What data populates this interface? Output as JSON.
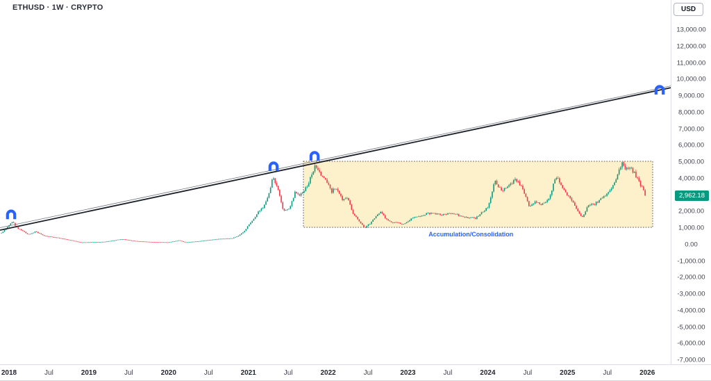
{
  "header": {
    "symbol_title": "ETHUSD · 1W · CRYPTO",
    "currency_button": "USD"
  },
  "price_scale": {
    "ticks": [
      {
        "label": "13,000.00",
        "value": 13000
      },
      {
        "label": "12,000.00",
        "value": 12000
      },
      {
        "label": "11,000.00",
        "value": 11000
      },
      {
        "label": "10,000.00",
        "value": 10000
      },
      {
        "label": "9,000.00",
        "value": 9000
      },
      {
        "label": "8,000.00",
        "value": 8000
      },
      {
        "label": "7,000.00",
        "value": 7000
      },
      {
        "label": "6,000.00",
        "value": 6000
      },
      {
        "label": "5,000.00",
        "value": 5000
      },
      {
        "label": "4,000.00",
        "value": 4000
      },
      {
        "label": "2,000.00",
        "value": 2000
      },
      {
        "label": "1,000.00",
        "value": 1000
      },
      {
        "label": "0.00",
        "value": 0
      },
      {
        "label": "-1,000.00",
        "value": -1000
      },
      {
        "label": "-2,000.00",
        "value": -2000
      },
      {
        "label": "-3,000.00",
        "value": -3000
      },
      {
        "label": "-4,000.00",
        "value": -4000
      },
      {
        "label": "-5,000.00",
        "value": -5000
      },
      {
        "label": "-6,000.00",
        "value": -6000
      },
      {
        "label": "-7,000.00",
        "value": -7000
      }
    ],
    "last_price_badge": {
      "label": "2,962.18",
      "value": 2962.18,
      "bg": "#089981"
    }
  },
  "time_scale": {
    "ticks": [
      {
        "label": "2018",
        "t": 0.0,
        "major": true
      },
      {
        "label": "Jul",
        "t": 0.5,
        "major": false
      },
      {
        "label": "2019",
        "t": 1.0,
        "major": true
      },
      {
        "label": "Jul",
        "t": 1.5,
        "major": false
      },
      {
        "label": "2020",
        "t": 2.0,
        "major": true
      },
      {
        "label": "Jul",
        "t": 2.5,
        "major": false
      },
      {
        "label": "2021",
        "t": 3.0,
        "major": true
      },
      {
        "label": "Jul",
        "t": 3.5,
        "major": false
      },
      {
        "label": "2022",
        "t": 4.0,
        "major": true
      },
      {
        "label": "Jul",
        "t": 4.5,
        "major": false
      },
      {
        "label": "2023",
        "t": 5.0,
        "major": true
      },
      {
        "label": "Jul",
        "t": 5.5,
        "major": false
      },
      {
        "label": "2024",
        "t": 6.0,
        "major": true
      },
      {
        "label": "Jul",
        "t": 6.5,
        "major": false
      },
      {
        "label": "2025",
        "t": 7.0,
        "major": true
      },
      {
        "label": "Jul",
        "t": 7.5,
        "major": false
      },
      {
        "label": "2026",
        "t": 8.0,
        "major": true
      }
    ]
  },
  "chart_data": {
    "type": "candlestick",
    "title": "ETHUSD weekly candles with ascending trendline and accumulation box",
    "symbol": "ETHUSD",
    "timeframe": "1W",
    "exchange": "CRYPTO",
    "currency": "USD",
    "axis_price_range": [
      -7000,
      13000
    ],
    "axis_time_range_years": [
      2018,
      2026
    ],
    "grid": false,
    "last_price": 2962.18,
    "candle_colors": {
      "up": "#089981",
      "down": "#F23645"
    },
    "weekly_close_anchors": [
      [
        -0.095,
        700
      ],
      [
        0.0,
        1150
      ],
      [
        0.04,
        1400
      ],
      [
        0.1,
        1000
      ],
      [
        0.16,
        850
      ],
      [
        0.24,
        600
      ],
      [
        0.33,
        780
      ],
      [
        0.45,
        520
      ],
      [
        0.6,
        420
      ],
      [
        0.75,
        280
      ],
      [
        0.9,
        130
      ],
      [
        1.0,
        140
      ],
      [
        1.2,
        165
      ],
      [
        1.42,
        330
      ],
      [
        1.58,
        210
      ],
      [
        1.8,
        150
      ],
      [
        2.0,
        135
      ],
      [
        2.13,
        250
      ],
      [
        2.21,
        130
      ],
      [
        2.4,
        215
      ],
      [
        2.6,
        330
      ],
      [
        2.72,
        360
      ],
      [
        2.8,
        380
      ],
      [
        2.88,
        550
      ],
      [
        2.94,
        750
      ],
      [
        3.0,
        1150
      ],
      [
        3.06,
        1500
      ],
      [
        3.12,
        1950
      ],
      [
        3.19,
        2300
      ],
      [
        3.25,
        2900
      ],
      [
        3.31,
        4200
      ],
      [
        3.37,
        3300
      ],
      [
        3.44,
        2050
      ],
      [
        3.52,
        2200
      ],
      [
        3.59,
        3250
      ],
      [
        3.64,
        2900
      ],
      [
        3.7,
        3250
      ],
      [
        3.76,
        3750
      ],
      [
        3.84,
        4850
      ],
      [
        3.89,
        4300
      ],
      [
        3.94,
        4100
      ],
      [
        3.98,
        3900
      ],
      [
        4.04,
        3200
      ],
      [
        4.1,
        3450
      ],
      [
        4.18,
        2700
      ],
      [
        4.24,
        2900
      ],
      [
        4.31,
        1900
      ],
      [
        4.41,
        1250
      ],
      [
        4.46,
        1000
      ],
      [
        4.54,
        1350
      ],
      [
        4.62,
        1850
      ],
      [
        4.66,
        2000
      ],
      [
        4.72,
        1600
      ],
      [
        4.78,
        1350
      ],
      [
        4.87,
        1300
      ],
      [
        4.95,
        1250
      ],
      [
        5.05,
        1600
      ],
      [
        5.15,
        1680
      ],
      [
        5.25,
        1900
      ],
      [
        5.35,
        1850
      ],
      [
        5.45,
        1800
      ],
      [
        5.55,
        1900
      ],
      [
        5.65,
        1750
      ],
      [
        5.75,
        1650
      ],
      [
        5.85,
        1600
      ],
      [
        5.92,
        1950
      ],
      [
        6.0,
        2250
      ],
      [
        6.09,
        3850
      ],
      [
        6.14,
        3500
      ],
      [
        6.18,
        3300
      ],
      [
        6.26,
        3600
      ],
      [
        6.35,
        3950
      ],
      [
        6.42,
        3500
      ],
      [
        6.52,
        2350
      ],
      [
        6.6,
        2600
      ],
      [
        6.68,
        2400
      ],
      [
        6.76,
        2700
      ],
      [
        6.86,
        4150
      ],
      [
        6.92,
        3600
      ],
      [
        7.0,
        3000
      ],
      [
        7.06,
        2600
      ],
      [
        7.12,
        2100
      ],
      [
        7.18,
        1600
      ],
      [
        7.26,
        2350
      ],
      [
        7.34,
        2450
      ],
      [
        7.44,
        2800
      ],
      [
        7.52,
        3200
      ],
      [
        7.6,
        3900
      ],
      [
        7.68,
        4900
      ],
      [
        7.73,
        4500
      ],
      [
        7.78,
        4700
      ],
      [
        7.83,
        4400
      ],
      [
        7.89,
        3860
      ],
      [
        7.95,
        3300
      ],
      [
        7.98,
        2962.18
      ]
    ],
    "annotations": {
      "trendlines": [
        {
          "from": [
            -0.113,
            873
          ],
          "to": [
            8.3,
            9505
          ],
          "color": "#1b1f27",
          "width": 1.8
        },
        {
          "from": [
            -0.113,
            1021
          ],
          "to": [
            8.3,
            9611
          ],
          "color": "#70737e",
          "width": 0.8
        }
      ],
      "consolidation_box": {
        "from_t": 3.69,
        "to_t": 8.068,
        "top_price": 5042,
        "bottom_price": 1042,
        "fill": "rgba(246,213,92,0.32)",
        "border_color": "#494c55"
      },
      "box_label": {
        "text": "Accumulation/Consolidation",
        "t": 5.79,
        "price": 620,
        "color": "#2962FF"
      },
      "magnet_markers": [
        {
          "t": 0.026,
          "price": 1790
        },
        {
          "t": 3.316,
          "price": 4705
        },
        {
          "t": 3.83,
          "price": 5337
        },
        {
          "t": 8.155,
          "price": 9337
        }
      ],
      "marker_color": "#2962FF"
    }
  }
}
